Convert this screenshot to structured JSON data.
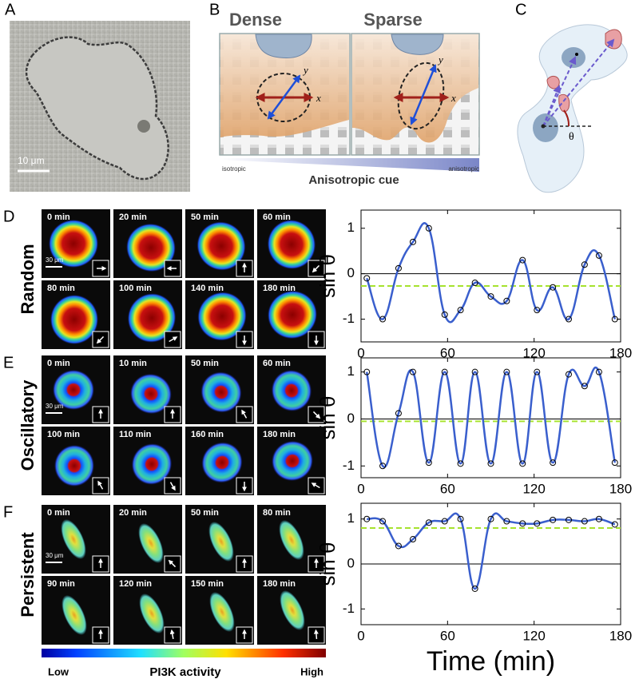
{
  "figure": {
    "panel_labels": [
      "A",
      "B",
      "C",
      "D",
      "E",
      "F"
    ],
    "a_scale": "10 μm",
    "b": {
      "dense": "Dense",
      "sparse": "Sparse",
      "x": "x",
      "y": "y",
      "isotropic": "isotropic",
      "anisotropic": "anisotropic",
      "cue": "Anisotropic cue"
    },
    "c_theta": "θ",
    "rows": [
      {
        "name": "Random",
        "scale": "30 μm",
        "times": [
          "0 min",
          "20 min",
          "50 min",
          "60 min",
          "80 min",
          "100 min",
          "140 min",
          "180 min"
        ]
      },
      {
        "name": "Oscillatory",
        "scale": "30 μm",
        "times": [
          "0 min",
          "10 min",
          "50 min",
          "60 min",
          "100 min",
          "110 min",
          "160 min",
          "180 min"
        ]
      },
      {
        "name": "Persistent",
        "scale": "30 μm",
        "times": [
          "0 min",
          "20 min",
          "50 min",
          "80 min",
          "90 min",
          "120 min",
          "150 min",
          "180 min"
        ]
      }
    ],
    "colorbar": {
      "low": "Low",
      "label": "PI3K activity",
      "high": "High"
    }
  },
  "chart_data": [
    {
      "type": "line",
      "ylabel": "sin θ",
      "x": [
        4,
        15,
        26,
        36,
        47,
        58,
        69,
        79,
        90,
        101,
        112,
        122,
        133,
        144,
        155,
        165,
        176
      ],
      "series": [
        {
          "color": "#3a5fcd",
          "values": [
            -0.1,
            -1,
            0.12,
            0.7,
            1.0,
            -0.9,
            -0.8,
            -0.2,
            -0.5,
            -0.6,
            0.3,
            -0.8,
            -0.3,
            -1.0,
            0.2,
            0.4,
            -1.0
          ]
        }
      ],
      "zero_line": 0,
      "mean_line": {
        "value": -0.27,
        "color": "#a6e22e"
      },
      "xlim": [
        0,
        180
      ],
      "xticks": [
        0,
        60,
        120,
        180
      ],
      "ylim": [
        -1.5,
        1.4
      ],
      "yticks": [
        -1,
        0,
        1
      ]
    },
    {
      "type": "line",
      "ylabel": "sin θ",
      "x": [
        4,
        15,
        26,
        36,
        47,
        58,
        69,
        79,
        90,
        101,
        112,
        122,
        133,
        144,
        155,
        165,
        176
      ],
      "series": [
        {
          "color": "#3a5fcd",
          "values": [
            1,
            -1,
            0.12,
            1,
            -0.93,
            1,
            -0.95,
            1,
            -0.95,
            1,
            -0.95,
            1,
            -0.93,
            0.95,
            0.7,
            1,
            -0.93
          ]
        }
      ],
      "zero_line": 0,
      "mean_line": {
        "value": -0.05,
        "color": "#a6e22e"
      },
      "xlim": [
        0,
        180
      ],
      "xticks": [
        0,
        60,
        120,
        180
      ],
      "ylim": [
        -1.25,
        1.3
      ],
      "yticks": [
        -1,
        0,
        1
      ]
    },
    {
      "type": "line",
      "ylabel": "sin θ",
      "xlabel": "Time (min)",
      "x": [
        4,
        15,
        26,
        36,
        47,
        58,
        69,
        79,
        90,
        101,
        112,
        122,
        133,
        144,
        155,
        165,
        176
      ],
      "series": [
        {
          "color": "#3a5fcd",
          "values": [
            1,
            0.95,
            0.4,
            0.55,
            0.92,
            0.95,
            1,
            -0.55,
            1,
            0.95,
            0.9,
            0.9,
            0.98,
            0.98,
            0.95,
            1,
            0.88
          ]
        }
      ],
      "zero_line": 0,
      "mean_line": {
        "value": 0.8,
        "color": "#a6e22e"
      },
      "xlim": [
        0,
        180
      ],
      "xticks": [
        0,
        60,
        120,
        180
      ],
      "ylim": [
        -1.35,
        1.35
      ],
      "yticks": [
        -1,
        0,
        1
      ]
    }
  ]
}
